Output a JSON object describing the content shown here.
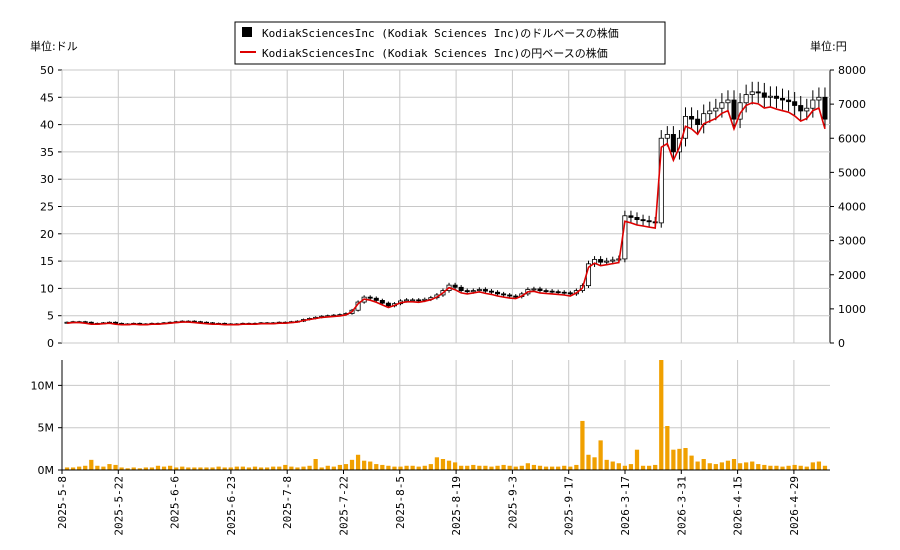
{
  "chart_data": {
    "type": "candlestick+line+bar",
    "legend": {
      "placement": "top-center",
      "entries": [
        {
          "label": "KodiakSciencesInc (Kodiak Sciences Inc)のドルベースの株価",
          "color": "#000000",
          "marker": "square"
        },
        {
          "label": "KodiakSciencesInc (Kodiak Sciences Inc)の円ベースの株価",
          "color": "#dd0000",
          "marker": "line"
        }
      ]
    },
    "left_unit": "単位:ドル",
    "right_unit": "単位:円",
    "price_axis": {
      "ylim": [
        0,
        50
      ],
      "ticks": [
        "0",
        "5",
        "10",
        "15",
        "20",
        "25",
        "30",
        "35",
        "40",
        "45",
        "50"
      ]
    },
    "yen_axis": {
      "ylim": [
        0,
        8000
      ],
      "ticks": [
        "0",
        "1000",
        "2000",
        "3000",
        "4000",
        "5000",
        "6000",
        "7000",
        "8000"
      ]
    },
    "volume_axis": {
      "ylim": [
        0,
        13000000
      ],
      "ticks": [
        "0M",
        "5M",
        "10M"
      ]
    },
    "x_tick_labels": [
      "2025-5-8",
      "2025-5-22",
      "2025-6-6",
      "2025-6-23",
      "2025-7-8",
      "2025-7-22",
      "2025-8-5",
      "2025-8-19",
      "2025-9-3",
      "2025-9-17",
      "2026-3-17",
      "2026-3-31",
      "2026-4-15",
      "2026-4-29"
    ],
    "grid": true,
    "colors": {
      "up": "#ffffff",
      "down": "#000000",
      "yen_line": "#dd0000",
      "volume": "#f0a000",
      "grid": "#c8c8c8"
    },
    "price_series": [
      3.8,
      3.9,
      3.9,
      3.8,
      3.6,
      3.6,
      3.7,
      3.8,
      3.6,
      3.5,
      3.5,
      3.6,
      3.5,
      3.5,
      3.6,
      3.6,
      3.7,
      3.8,
      3.9,
      4.0,
      4.0,
      3.9,
      3.8,
      3.7,
      3.6,
      3.6,
      3.5,
      3.5,
      3.5,
      3.6,
      3.6,
      3.6,
      3.7,
      3.7,
      3.7,
      3.8,
      3.8,
      3.9,
      4.0,
      4.3,
      4.5,
      4.7,
      4.9,
      5.0,
      5.1,
      5.2,
      5.4,
      6.0,
      7.5,
      8.4,
      8.2,
      7.8,
      7.3,
      6.8,
      7.2,
      7.7,
      7.9,
      7.9,
      7.8,
      8.0,
      8.3,
      8.8,
      9.6,
      10.6,
      10.2,
      9.6,
      9.4,
      9.6,
      9.8,
      9.5,
      9.3,
      9.0,
      8.8,
      8.6,
      8.5,
      9.0,
      9.8,
      9.9,
      9.6,
      9.5,
      9.4,
      9.3,
      9.2,
      9.0,
      9.6,
      10.5,
      14.5,
      15.3,
      14.8,
      15.0,
      15.2,
      15.4,
      23.3,
      23.0,
      22.6,
      22.4,
      22.2,
      22.0,
      37.5,
      38.2,
      35.0,
      37.5,
      41.5,
      41.0,
      40.0,
      42.0,
      42.5,
      43.0,
      44.0,
      44.5,
      41.0,
      44.0,
      45.5,
      46.0,
      45.8,
      45.0,
      45.2,
      44.8,
      44.5,
      44.2,
      43.5,
      42.5,
      43.0,
      44.5,
      45.0,
      41.0
    ],
    "volume_series": [
      0.3,
      0.3,
      0.4,
      0.5,
      1.2,
      0.5,
      0.4,
      0.7,
      0.6,
      0.3,
      0.2,
      0.3,
      0.2,
      0.3,
      0.3,
      0.5,
      0.4,
      0.5,
      0.3,
      0.4,
      0.3,
      0.3,
      0.3,
      0.3,
      0.3,
      0.4,
      0.3,
      0.3,
      0.4,
      0.4,
      0.3,
      0.4,
      0.3,
      0.3,
      0.4,
      0.4,
      0.6,
      0.4,
      0.3,
      0.4,
      0.5,
      1.3,
      0.3,
      0.5,
      0.4,
      0.6,
      0.7,
      1.2,
      1.8,
      1.1,
      1.0,
      0.7,
      0.6,
      0.5,
      0.4,
      0.4,
      0.5,
      0.5,
      0.4,
      0.5,
      0.7,
      1.5,
      1.3,
      1.1,
      0.9,
      0.5,
      0.5,
      0.6,
      0.5,
      0.5,
      0.4,
      0.5,
      0.6,
      0.5,
      0.4,
      0.5,
      0.8,
      0.6,
      0.5,
      0.4,
      0.4,
      0.4,
      0.5,
      0.4,
      0.6,
      5.8,
      1.8,
      1.5,
      3.5,
      1.2,
      1.0,
      0.8,
      0.5,
      0.7,
      2.4,
      0.5,
      0.5,
      0.6,
      13.0,
      5.2,
      2.4,
      2.5,
      2.6,
      1.7,
      1.0,
      1.3,
      0.8,
      0.7,
      0.9,
      1.1,
      1.3,
      0.8,
      0.9,
      1.0,
      0.7,
      0.6,
      0.5,
      0.5,
      0.4,
      0.5,
      0.6,
      0.5,
      0.4,
      0.9,
      1.0,
      0.5,
      0.4,
      0.8
    ]
  }
}
